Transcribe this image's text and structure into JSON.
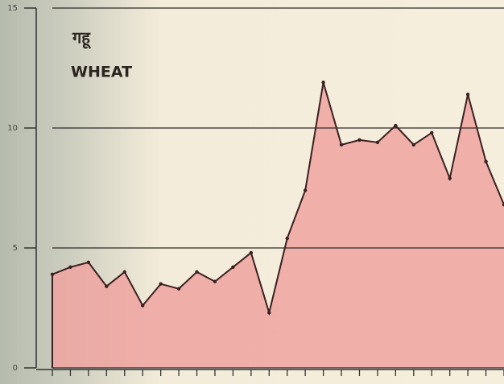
{
  "chart_data": {
    "type": "area",
    "title": "गहू",
    "subtitle": "WHEAT",
    "categories": [
      null,
      null,
      null,
      null,
      null,
      null,
      null,
      null,
      null,
      null,
      null,
      null,
      null,
      null,
      null,
      null,
      null,
      null,
      null,
      null,
      null,
      null,
      null,
      null,
      null,
      null
    ],
    "values": [
      3.9,
      4.2,
      4.4,
      3.4,
      4.0,
      2.6,
      3.5,
      3.3,
      4.0,
      3.6,
      4.2,
      4.8,
      2.3,
      5.4,
      7.4,
      11.9,
      9.3,
      9.5,
      9.4,
      10.1,
      9.3,
      9.8,
      7.9,
      11.4,
      8.6,
      6.8
    ],
    "color": "#eea3a0",
    "line_color": "#3a2020",
    "ylim": [
      0,
      15
    ],
    "yticks": [
      0,
      5,
      10,
      15
    ],
    "grid": true
  }
}
